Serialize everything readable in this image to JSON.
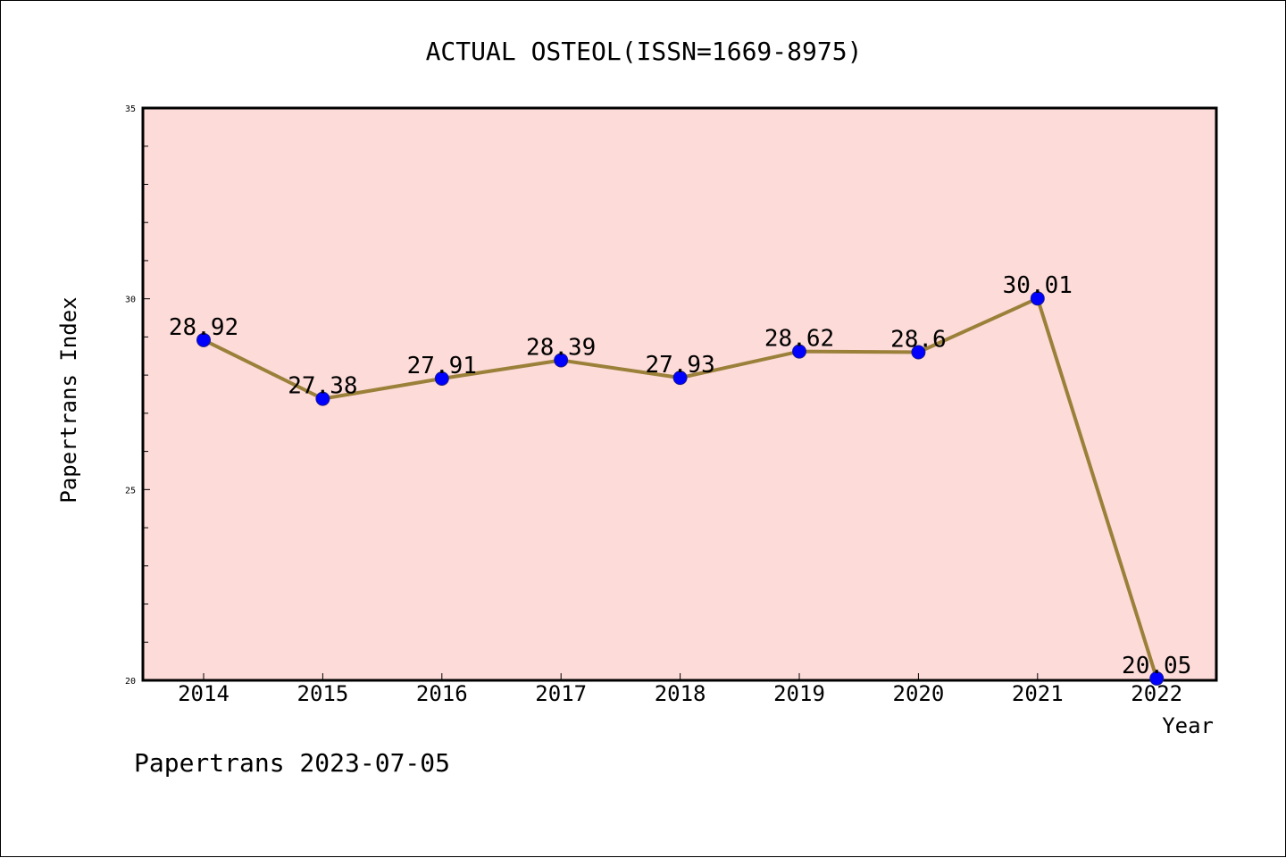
{
  "chart_data": {
    "type": "line",
    "title": "ACTUAL OSTEOL(ISSN=1669-8975)",
    "xlabel": "Year",
    "ylabel": "Papertrans Index",
    "categories": [
      "2014",
      "2015",
      "2016",
      "2017",
      "2018",
      "2019",
      "2020",
      "2021",
      "2022"
    ],
    "series": [
      {
        "values": [
          28.92,
          27.38,
          27.91,
          28.39,
          27.93,
          28.62,
          28.6,
          30.01,
          20.05
        ],
        "labels": [
          "28.92",
          "27.38",
          "27.91",
          "28.39",
          "27.93",
          "28.62",
          "28.6",
          "30.01",
          "20.05"
        ]
      }
    ],
    "ylim": [
      20,
      35
    ],
    "y_ticks": [
      "20",
      "25",
      "30",
      "35"
    ],
    "grid": false,
    "colors": {
      "plot_background": "#fddbd8",
      "line": "#9b803a",
      "marker": "#0000ff"
    }
  },
  "footer": {
    "text": "Papertrans 2023-07-05"
  }
}
